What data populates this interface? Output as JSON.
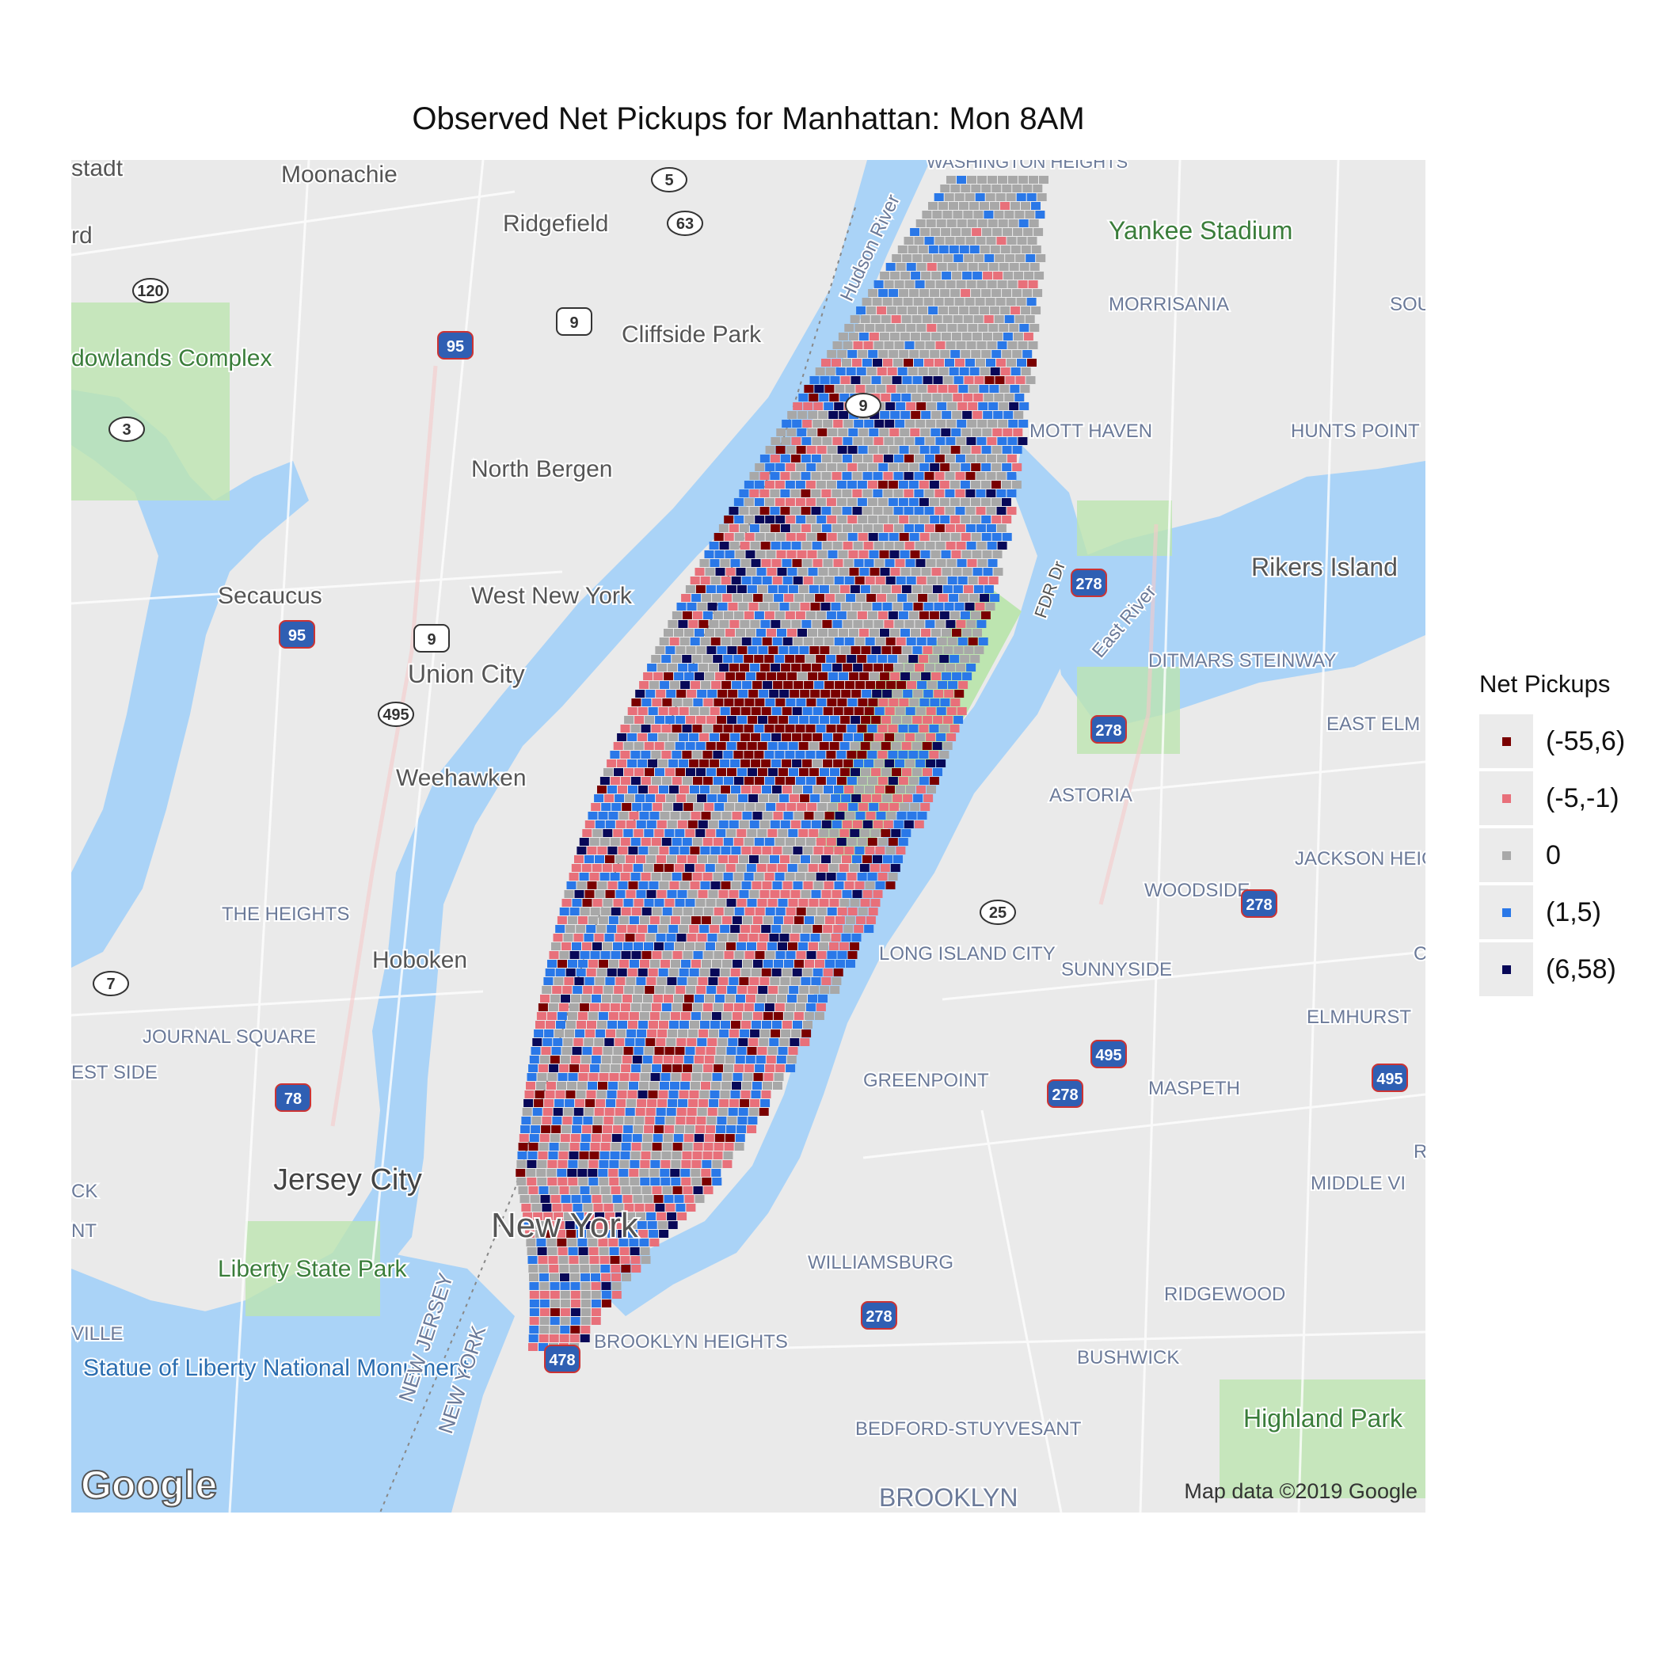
{
  "title": "Observed Net Pickups for Manhattan: Mon 8AM",
  "legend": {
    "title": "Net Pickups",
    "items": [
      {
        "label": "(-55,6)",
        "color": "#7a0000"
      },
      {
        "label": "(-5,-1)",
        "color": "#e8707a"
      },
      {
        "label": "0",
        "color": "#a8a8a8"
      },
      {
        "label": "(1,5)",
        "color": "#2a78e8"
      },
      {
        "label": "(6,58)",
        "color": "#080858"
      }
    ]
  },
  "map": {
    "water_color": "#aad3f7",
    "land_color": "#eaeaea",
    "park_color": "#bde5b0",
    "attribution": "Map data ©2019 Google",
    "logo": "Google",
    "place_labels": [
      "Moonachie",
      "Ridgefield",
      "Cliffside Park",
      "North Bergen",
      "Secaucus",
      "West New York",
      "Union City",
      "Weehawken",
      "Hoboken",
      "Jersey City",
      "Liberty State Park",
      "Statue of Liberty National Monument",
      "Yankee Stadium",
      "Rikers Island",
      "Highland Park",
      "WASHINGTON HEIGHTS",
      "MORRISANIA",
      "MOTT HAVEN",
      "HUNTS POINT",
      "SOUN",
      "DITMARS STEINWAY",
      "EAST ELM",
      "ASTORIA",
      "JACKSON HEIGHTS",
      "WOODSIDE",
      "LONG ISLAND CITY",
      "SUNNYSIDE",
      "ELMHURST",
      "GREENPOINT",
      "MASPETH",
      "MIDDLE VI",
      "WILLIAMSBURG",
      "RIDGEWOOD",
      "BROOKLYN HEIGHTS",
      "BUSHWICK",
      "BEDFORD-STUYVESANT",
      "BROOKLYN",
      "THE HEIGHTS",
      "JOURNAL SQUARE",
      "EST SIDE",
      "NEW JERSEY",
      "NEW YORK",
      "Hudson River",
      "East River",
      "FDR Dr",
      "stadt",
      "rd",
      "dowlands Complex",
      "CK",
      "NT",
      "VILLE",
      "R",
      "C",
      "New York"
    ],
    "highway_shields": [
      "5",
      "63",
      "120",
      "95",
      "9",
      "3",
      "9",
      "95",
      "9",
      "495",
      "7",
      "78",
      "278",
      "278",
      "278",
      "25",
      "495",
      "278",
      "495",
      "478",
      "278"
    ]
  }
}
